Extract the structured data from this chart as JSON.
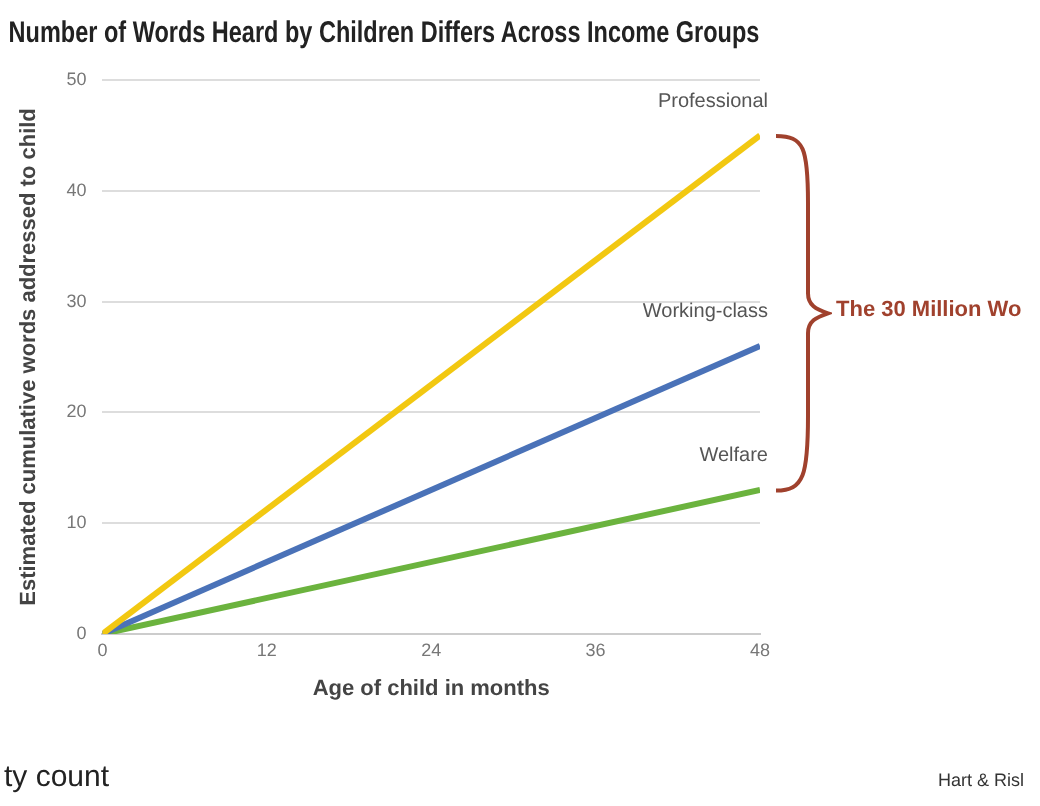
{
  "chart_data": {
    "type": "line",
    "title": "Number of Words Heard by Children Differs Across Income Groups",
    "xlabel": "Age of child in months",
    "ylabel": "Estimated cumulative words addressed to child",
    "x": [
      0,
      48
    ],
    "series": [
      {
        "name": "Professional",
        "color": "#f2c811",
        "values": [
          0,
          45
        ]
      },
      {
        "name": "Working-class",
        "color": "#4a72b8",
        "values": [
          0,
          26
        ]
      },
      {
        "name": "Welfare",
        "color": "#6bb33e",
        "values": [
          0,
          13
        ]
      }
    ],
    "xlim": [
      0,
      48
    ],
    "xticks": [
      0,
      12,
      24,
      36,
      48
    ],
    "ylim": [
      0,
      50
    ],
    "yticks": [
      0,
      10,
      20,
      30,
      40,
      50
    ],
    "grid": "y",
    "legend": false,
    "marker": "none",
    "line_style": "solid",
    "annotations": [
      "The 30 Million Wo",
      "Hart & Risl",
      "ty count"
    ]
  }
}
